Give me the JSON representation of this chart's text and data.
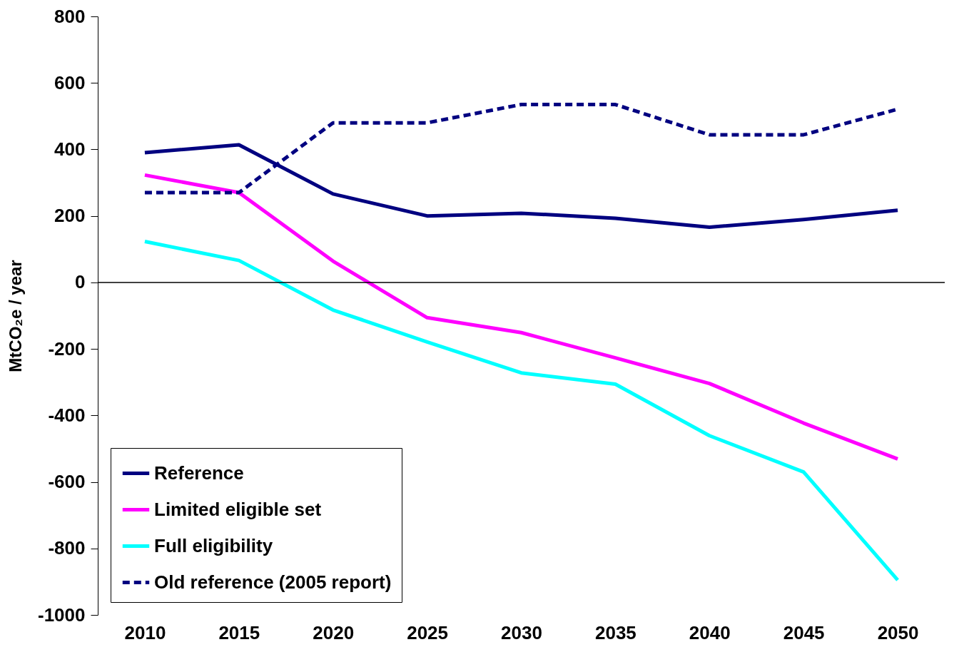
{
  "chart_data": {
    "type": "line",
    "ylabel": "MtCO₂e / year",
    "categories": [
      "2010",
      "2015",
      "2020",
      "2025",
      "2030",
      "2035",
      "2040",
      "2045",
      "2050"
    ],
    "series": [
      {
        "name": "Reference",
        "color": "#000080",
        "line_style": "solid",
        "values": [
          390,
          414,
          266,
          200,
          208,
          193,
          166,
          189,
          217
        ]
      },
      {
        "name": "Limited eligible set",
        "color": "#ff00ff",
        "line_style": "solid",
        "values": [
          323,
          270,
          64,
          -106,
          -151,
          -227,
          -304,
          -423,
          -531
        ]
      },
      {
        "name": "Full eligibility",
        "color": "#00ffff",
        "line_style": "solid",
        "values": [
          123,
          66,
          -83,
          -179,
          -272,
          -306,
          -461,
          -570,
          -895
        ]
      },
      {
        "name": "Old reference (2005 report)",
        "color": "#000080",
        "line_style": "dashed",
        "values": [
          270,
          270,
          480,
          480,
          535,
          535,
          444,
          444,
          521
        ]
      }
    ],
    "ylim": [
      -1000,
      800
    ],
    "yticks": [
      -1000,
      -800,
      -600,
      -400,
      -200,
      0,
      200,
      400,
      600,
      800
    ],
    "ref_lines": [
      {
        "axis": "y",
        "value": 0,
        "color": "#000000"
      }
    ],
    "grid": false,
    "legend": "bottom left",
    "marker": "none"
  }
}
